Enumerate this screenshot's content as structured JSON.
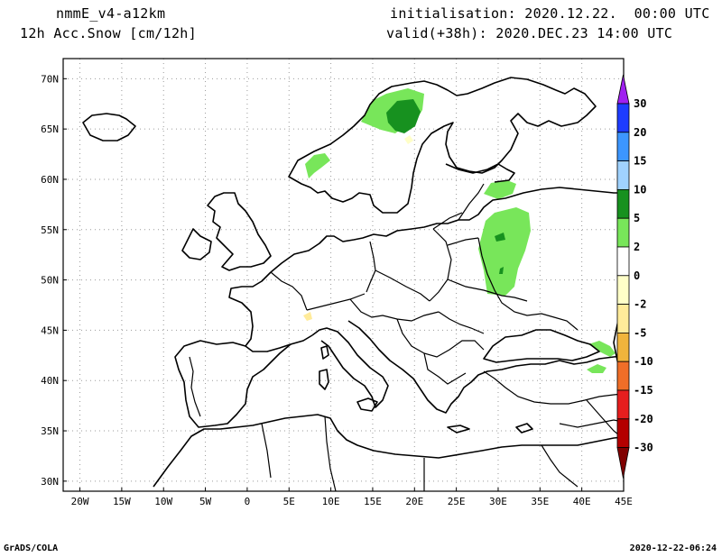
{
  "header": {
    "model": "nmmE_v4-a12km",
    "variable": "12h Acc.Snow [cm/12h]",
    "init": "initialisation: 2020.12.22.  00:00 UTC",
    "valid": "valid(+38h): 2020.DEC.23 14:00 UTC"
  },
  "footer": {
    "left": "GrADS/COLA",
    "right": "2020-12-22-06:24"
  },
  "chart_data": {
    "type": "heatmap",
    "title": "",
    "x_axis": {
      "range": [
        -22,
        45
      ],
      "ticks": [
        -20,
        -15,
        -10,
        -5,
        0,
        5,
        10,
        15,
        20,
        25,
        30,
        35,
        40,
        45
      ],
      "tick_labels": [
        "20W",
        "15W",
        "10W",
        "5W",
        "0",
        "5E",
        "10E",
        "15E",
        "20E",
        "25E",
        "30E",
        "35E",
        "40E",
        "45E"
      ]
    },
    "y_axis": {
      "range": [
        29,
        72
      ],
      "ticks": [
        30,
        35,
        40,
        45,
        50,
        55,
        60,
        65,
        70
      ],
      "tick_labels": [
        "30N",
        "35N",
        "40N",
        "45N",
        "50N",
        "55N",
        "60N",
        "65N",
        "70N"
      ]
    },
    "grid": true,
    "legend_placement": "right",
    "colorbar": {
      "levels": [
        "30",
        "20",
        "15",
        "10",
        "5",
        "2",
        "0",
        "-2",
        "-5",
        "-10",
        "-15",
        "-20",
        "-30"
      ],
      "colors": [
        "#a020f0",
        "#1e3cff",
        "#3c96ff",
        "#a0d2ff",
        "#17911f",
        "#78e65a",
        "#ffffff",
        "#ffffc8",
        "#ffeb9a",
        "#f0b43c",
        "#f06e28",
        "#e61e1e",
        "#b40000",
        "#800000"
      ]
    },
    "fields": [
      {
        "region": "northern Sweden/Norway",
        "band": "2 to 5",
        "peak_band": "5 to 10"
      },
      {
        "region": "southern Norway",
        "band": "2 to 5"
      },
      {
        "region": "western Russia",
        "band": "2 to 5",
        "peak_band": "5 to 10"
      },
      {
        "region": "Caucasus",
        "band": "2 to 5"
      }
    ]
  }
}
